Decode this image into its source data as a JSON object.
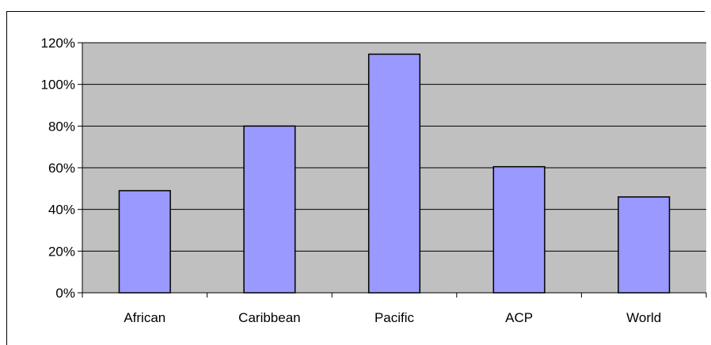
{
  "chart_data": {
    "type": "bar",
    "categories": [
      "African",
      "Caribbean",
      "Pacific",
      "ACP",
      "World"
    ],
    "values": [
      49,
      80,
      114.5,
      60.5,
      46
    ],
    "ylim": [
      0,
      120
    ],
    "yticks": [
      "0%",
      "20%",
      "40%",
      "60%",
      "80%",
      "100%",
      "120%"
    ],
    "grid": true,
    "legend": "none",
    "colors": {
      "plot_background": "#c0c0c0",
      "bar_fill": "#9999ff",
      "bar_stroke": "#000000",
      "grid": "#000000"
    }
  }
}
